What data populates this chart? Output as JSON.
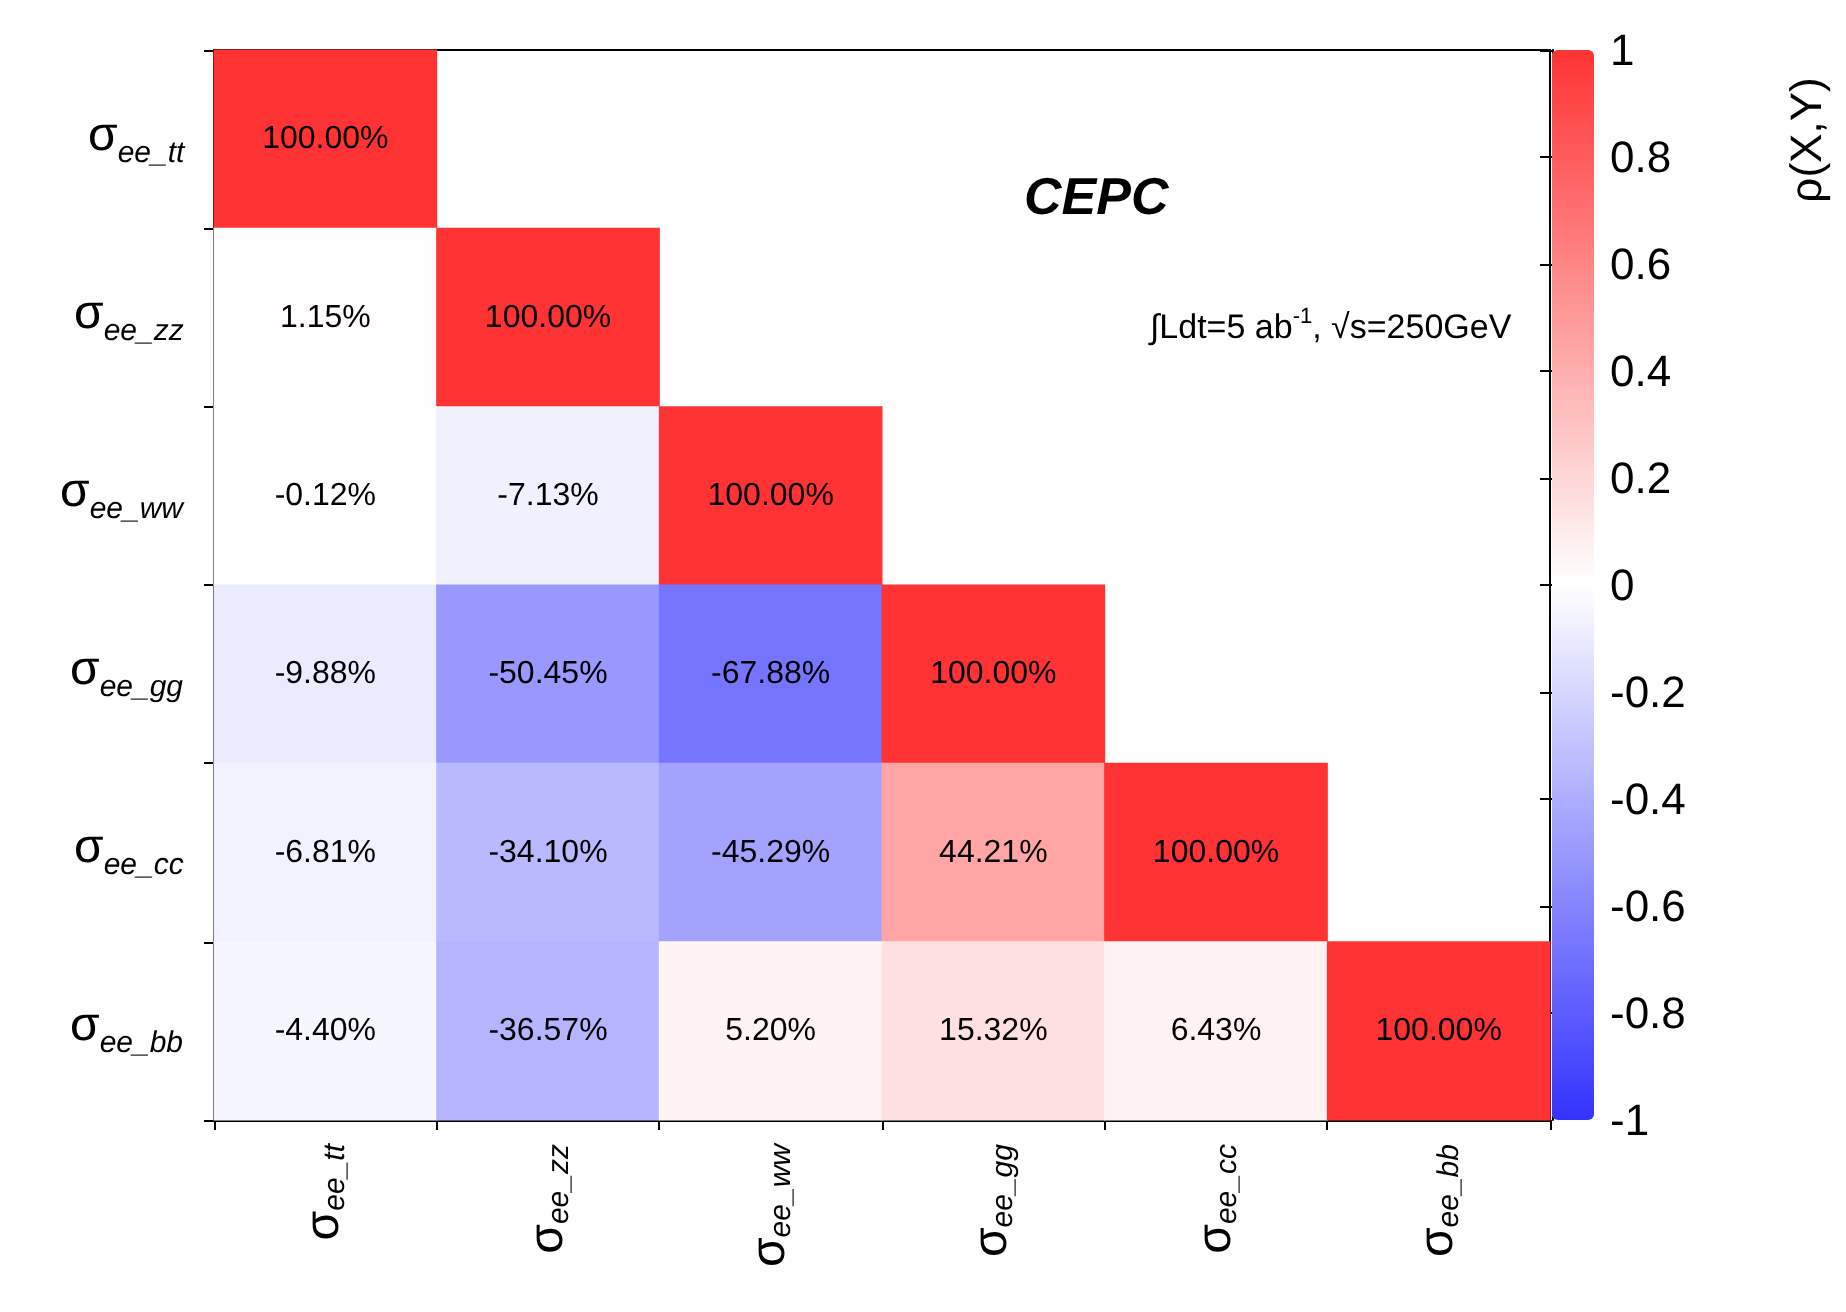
{
  "chart_data": {
    "type": "heatmap",
    "categories": [
      "σ$_{ee_tt}$",
      "σ$_{ee_zz}$",
      "σ$_{ee_ww}$",
      "σ$_{ee_gg}$",
      "σ$_{ee_cc}$",
      "σ$_{ee_bb}$"
    ],
    "y_categories": [
      "σ$_{ee_tt}$",
      "σ$_{ee_zz}$",
      "σ$_{ee_ww}$",
      "σ$_{ee_gg}$",
      "σ$_{ee_cc}$",
      "σ$_{ee_bb}$"
    ],
    "cells": [
      [
        1,
        null,
        null,
        null,
        null,
        null
      ],
      [
        0.0115,
        1,
        null,
        null,
        null,
        null
      ],
      [
        -0.0012,
        -0.0713,
        1,
        null,
        null,
        null
      ],
      [
        -0.0988,
        -0.5045,
        -0.6788,
        1,
        null,
        null
      ],
      [
        -0.0681,
        -0.341,
        -0.4529,
        0.4421,
        1,
        null
      ],
      [
        -0.044,
        -0.3657,
        0.052,
        0.1532,
        0.0643,
        1
      ]
    ],
    "cell_labels": [
      [
        "100.00%",
        null,
        null,
        null,
        null,
        null
      ],
      [
        "1.15%",
        "100.00%",
        null,
        null,
        null,
        null
      ],
      [
        "-0.12%",
        "-7.13%",
        "100.00%",
        null,
        null,
        null
      ],
      [
        "-9.88%",
        "-50.45%",
        "-67.88%",
        "100.00%",
        null,
        null
      ],
      [
        "-6.81%",
        "-34.10%",
        "-45.29%",
        "44.21%",
        "100.00%",
        null
      ],
      [
        "-4.40%",
        "-36.57%",
        "5.20%",
        "15.32%",
        "6.43%",
        "100.00%"
      ]
    ],
    "clim": [
      -1,
      1
    ],
    "cticks": [
      -1,
      -0.8,
      -0.6,
      -0.4,
      -0.2,
      0,
      0.2,
      0.4,
      0.6,
      0.8,
      1
    ],
    "clabel": "ρ(X,Y)",
    "annotations": [
      "CEPC",
      "∫Ldt=5 ab$^{-1}$, √s=250GeV"
    ]
  }
}
